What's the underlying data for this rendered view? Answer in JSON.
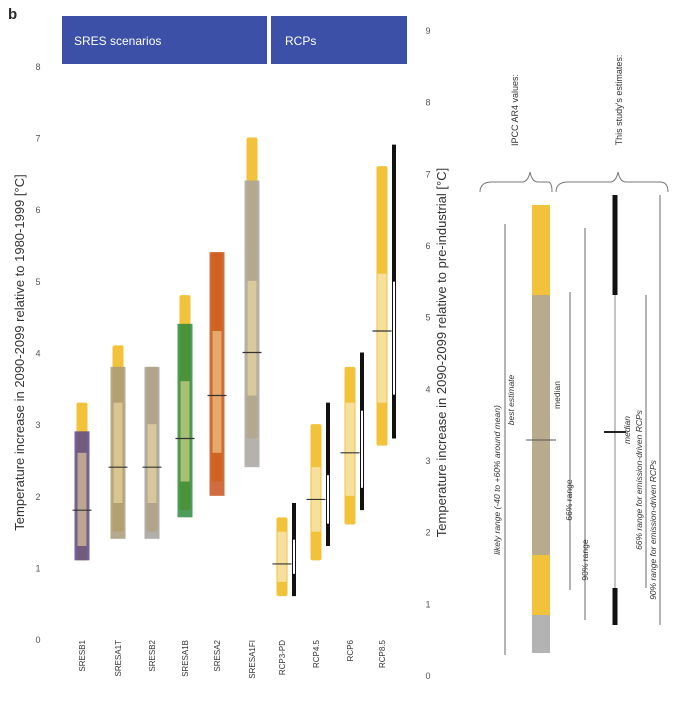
{
  "chart_data": {
    "type": "bar",
    "panel_label": "b",
    "groups": [
      {
        "label": "SRES scenarios",
        "categories": [
          "SRESB1",
          "SRESA1T",
          "SRESB2",
          "SRESA1B",
          "SRESA2",
          "SRESA1FI"
        ]
      },
      {
        "label": "RCPs",
        "categories": [
          "RCP3-PD",
          "RCP4.5",
          "RCP6",
          "RCP8.5"
        ]
      }
    ],
    "left_axis": {
      "label": "Temperature increase in 2090-2099 relative to 1980-1999 [°C]",
      "range": [
        -0.5,
        8.5
      ],
      "ticks": [
        "0",
        "1",
        "2",
        "3",
        "4",
        "5",
        "6",
        "7",
        "8"
      ]
    },
    "right_axis": {
      "label": "Temperature increase in 2090-2099 relative to pre-industrial [°C]",
      "range": [
        0,
        9
      ],
      "ticks": [
        "0",
        "1",
        "2",
        "3",
        "4",
        "5",
        "6",
        "7",
        "8",
        "9"
      ]
    },
    "series": [
      {
        "category": "SRESB1",
        "color": "#5a4a8a",
        "likely_range": [
          1.1,
          2.9
        ],
        "range_66": [
          1.3,
          2.6
        ],
        "range_90": [
          1.1,
          3.3
        ],
        "median": 1.8
      },
      {
        "category": "SRESA1T",
        "color": "#a89a7a",
        "likely_range": [
          1.4,
          3.8
        ],
        "range_66": [
          1.9,
          3.3
        ],
        "range_90": [
          1.5,
          4.1
        ],
        "median": 2.4
      },
      {
        "category": "SRESB2",
        "color": "#a5a09a",
        "likely_range": [
          1.4,
          3.8
        ],
        "range_66": [
          1.9,
          3.0
        ],
        "range_90": [
          1.5,
          3.8
        ],
        "median": 2.4
      },
      {
        "category": "SRESA1B",
        "color": "#2e8b3c",
        "likely_range": [
          1.7,
          4.4
        ],
        "range_66": [
          2.2,
          3.6
        ],
        "range_90": [
          1.8,
          4.8
        ],
        "median": 2.8
      },
      {
        "category": "SRESA2",
        "color": "#c9521e",
        "likely_range": [
          2.0,
          5.4
        ],
        "range_66": [
          2.6,
          4.3
        ],
        "range_90": [
          2.2,
          5.4
        ],
        "median": 3.4
      },
      {
        "category": "SRESA1FI",
        "color": "#a8a4a0",
        "likely_range": [
          2.4,
          6.4
        ],
        "range_66": [
          3.4,
          5.0
        ],
        "range_90": [
          2.8,
          7.0
        ],
        "median": 4.0
      },
      {
        "category": "RCP3-PD",
        "likely_range": [
          0.7,
          1.7
        ],
        "range_66": [
          0.8,
          1.5
        ],
        "range_90": [
          0.6,
          1.7
        ],
        "median": 1.05,
        "black_66": [
          0.6,
          1.9
        ]
      },
      {
        "category": "RCP4.5",
        "likely_range": [
          1.1,
          3.0
        ],
        "range_66": [
          1.5,
          2.4
        ],
        "range_90": [
          1.1,
          3.0
        ],
        "median": 1.95,
        "black_66": [
          1.3,
          3.3
        ]
      },
      {
        "category": "RCP6",
        "likely_range": [
          1.6,
          3.8
        ],
        "range_66": [
          2.0,
          3.3
        ],
        "range_90": [
          1.6,
          3.8
        ],
        "median": 2.6,
        "black_66": [
          1.8,
          4.0
        ]
      },
      {
        "category": "RCP8.5",
        "likely_range": [
          2.7,
          6.6
        ],
        "range_66": [
          3.3,
          5.1
        ],
        "range_90": [
          2.7,
          6.6
        ],
        "median": 4.3,
        "black_66": [
          2.8,
          6.9
        ]
      }
    ],
    "legend": {
      "ipcc_label": "IPCC AR4 values:",
      "study_label": "This study's estimates:",
      "ipcc_items": [
        "likely range (-40 to +60% around mean)",
        "best estimate",
        "median",
        "66% range",
        "90% range"
      ],
      "study_items": [
        "median",
        "66% range for emission-driven RCPs",
        "90% range for emission-driven RCPs"
      ]
    },
    "colors": {
      "header": "#3c50a8",
      "gold": "#f1c23a",
      "light_gold": "#f7e3a8",
      "bar_gray": "#b8aa8c",
      "black": "#111111"
    }
  }
}
